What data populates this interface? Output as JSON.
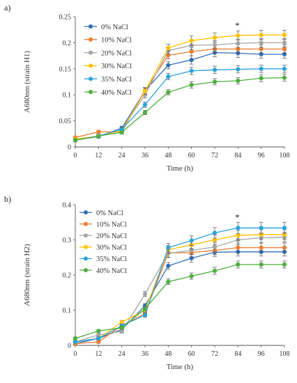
{
  "colors": {
    "0% NaCl": "#2e6fba",
    "10% NaCl": "#ed7d31",
    "20% NaCl": "#a5a5a5",
    "30% NaCl": "#ffc000",
    "35% NaCl": "#2aa3dc",
    "40% NaCl": "#4caf3c"
  },
  "chart_data": [
    {
      "panel_label": "a)",
      "type": "line",
      "xlabel": "Time (h)",
      "ylabel": "A680nm (strain H1)",
      "x": [
        0,
        12,
        24,
        36,
        48,
        60,
        72,
        84,
        96,
        108
      ],
      "ylim": [
        0,
        0.25
      ],
      "yticks": [
        0,
        0.05,
        0.1,
        0.15,
        0.2,
        0.25
      ],
      "ytick_labels": [
        "0",
        "0.05",
        "0.1",
        "0.15",
        "0.2",
        "0.25"
      ],
      "legend_position": "top-left",
      "annotation": {
        "text": "*",
        "x": 84
      },
      "series": [
        {
          "name": "0% NaCl",
          "values": [
            0.013,
            0.02,
            0.036,
            0.108,
            0.157,
            0.167,
            0.181,
            0.18,
            0.178,
            0.178
          ],
          "err": [
            0.002,
            0.003,
            0.004,
            0.006,
            0.007,
            0.008,
            0.008,
            0.008,
            0.008,
            0.008
          ]
        },
        {
          "name": "10% NaCl",
          "values": [
            0.018,
            0.029,
            0.029,
            0.108,
            0.176,
            0.183,
            0.188,
            0.188,
            0.188,
            0.188
          ],
          "err": [
            0.002,
            0.003,
            0.004,
            0.006,
            0.007,
            0.008,
            0.008,
            0.008,
            0.008,
            0.008
          ]
        },
        {
          "name": "20% NaCl",
          "values": [
            0.013,
            0.021,
            0.034,
            0.1,
            0.185,
            0.195,
            0.196,
            0.199,
            0.2,
            0.2
          ],
          "err": [
            0.002,
            0.003,
            0.004,
            0.006,
            0.007,
            0.008,
            0.008,
            0.008,
            0.008,
            0.008
          ]
        },
        {
          "name": "30% NaCl",
          "values": [
            0.015,
            0.021,
            0.031,
            0.107,
            0.19,
            0.204,
            0.21,
            0.214,
            0.215,
            0.215
          ],
          "err": [
            0.002,
            0.003,
            0.004,
            0.006,
            0.007,
            0.009,
            0.009,
            0.009,
            0.009,
            0.009
          ]
        },
        {
          "name": "35% NaCl",
          "values": [
            0.013,
            0.021,
            0.034,
            0.081,
            0.135,
            0.146,
            0.148,
            0.149,
            0.15,
            0.15
          ],
          "err": [
            0.002,
            0.003,
            0.004,
            0.005,
            0.006,
            0.007,
            0.007,
            0.007,
            0.007,
            0.007
          ]
        },
        {
          "name": "40% NaCl",
          "values": [
            0.013,
            0.021,
            0.028,
            0.066,
            0.105,
            0.119,
            0.125,
            0.127,
            0.132,
            0.133
          ],
          "err": [
            0.002,
            0.003,
            0.003,
            0.004,
            0.005,
            0.006,
            0.006,
            0.006,
            0.007,
            0.007
          ]
        }
      ]
    },
    {
      "panel_label": "b)",
      "type": "line",
      "xlabel": "Time (h)",
      "ylabel": "A680nm (strain H2)",
      "x": [
        0,
        12,
        24,
        36,
        48,
        60,
        72,
        84,
        96,
        108
      ],
      "ylim": [
        0,
        0.4
      ],
      "yticks": [
        0,
        0.1,
        0.2,
        0.3,
        0.4
      ],
      "ytick_labels": [
        "0",
        "0.1",
        "0.2",
        "0.3",
        "0.4"
      ],
      "legend_position": "top-left",
      "annotation": {
        "text": "*",
        "x": 84
      },
      "series": [
        {
          "name": "0% NaCl",
          "values": [
            0.005,
            0.02,
            0.045,
            0.113,
            0.226,
            0.248,
            0.265,
            0.266,
            0.266,
            0.266
          ],
          "err": [
            0.003,
            0.004,
            0.005,
            0.006,
            0.01,
            0.011,
            0.012,
            0.012,
            0.012,
            0.012
          ]
        },
        {
          "name": "10% NaCl",
          "values": [
            0.005,
            0.01,
            0.056,
            0.09,
            0.263,
            0.264,
            0.27,
            0.278,
            0.278,
            0.278
          ],
          "err": [
            0.003,
            0.004,
            0.005,
            0.006,
            0.012,
            0.012,
            0.012,
            0.013,
            0.013,
            0.013
          ]
        },
        {
          "name": "20% NaCl",
          "values": [
            0.01,
            0.03,
            0.04,
            0.146,
            0.262,
            0.27,
            0.28,
            0.3,
            0.306,
            0.308
          ],
          "err": [
            0.003,
            0.004,
            0.005,
            0.007,
            0.012,
            0.012,
            0.013,
            0.014,
            0.014,
            0.014
          ]
        },
        {
          "name": "30% NaCl",
          "values": [
            0.01,
            0.02,
            0.066,
            0.1,
            0.272,
            0.286,
            0.3,
            0.313,
            0.315,
            0.315
          ],
          "err": [
            0.003,
            0.004,
            0.005,
            0.006,
            0.012,
            0.013,
            0.014,
            0.014,
            0.014,
            0.014
          ]
        },
        {
          "name": "35% NaCl",
          "values": [
            0.01,
            0.02,
            0.056,
            0.086,
            0.278,
            0.298,
            0.32,
            0.334,
            0.334,
            0.334
          ],
          "err": [
            0.003,
            0.004,
            0.005,
            0.006,
            0.012,
            0.014,
            0.015,
            0.016,
            0.016,
            0.016
          ]
        },
        {
          "name": "40% NaCl",
          "values": [
            0.02,
            0.041,
            0.05,
            0.104,
            0.181,
            0.197,
            0.212,
            0.23,
            0.23,
            0.23
          ],
          "err": [
            0.003,
            0.004,
            0.005,
            0.006,
            0.008,
            0.009,
            0.01,
            0.01,
            0.01,
            0.01
          ]
        }
      ]
    }
  ]
}
